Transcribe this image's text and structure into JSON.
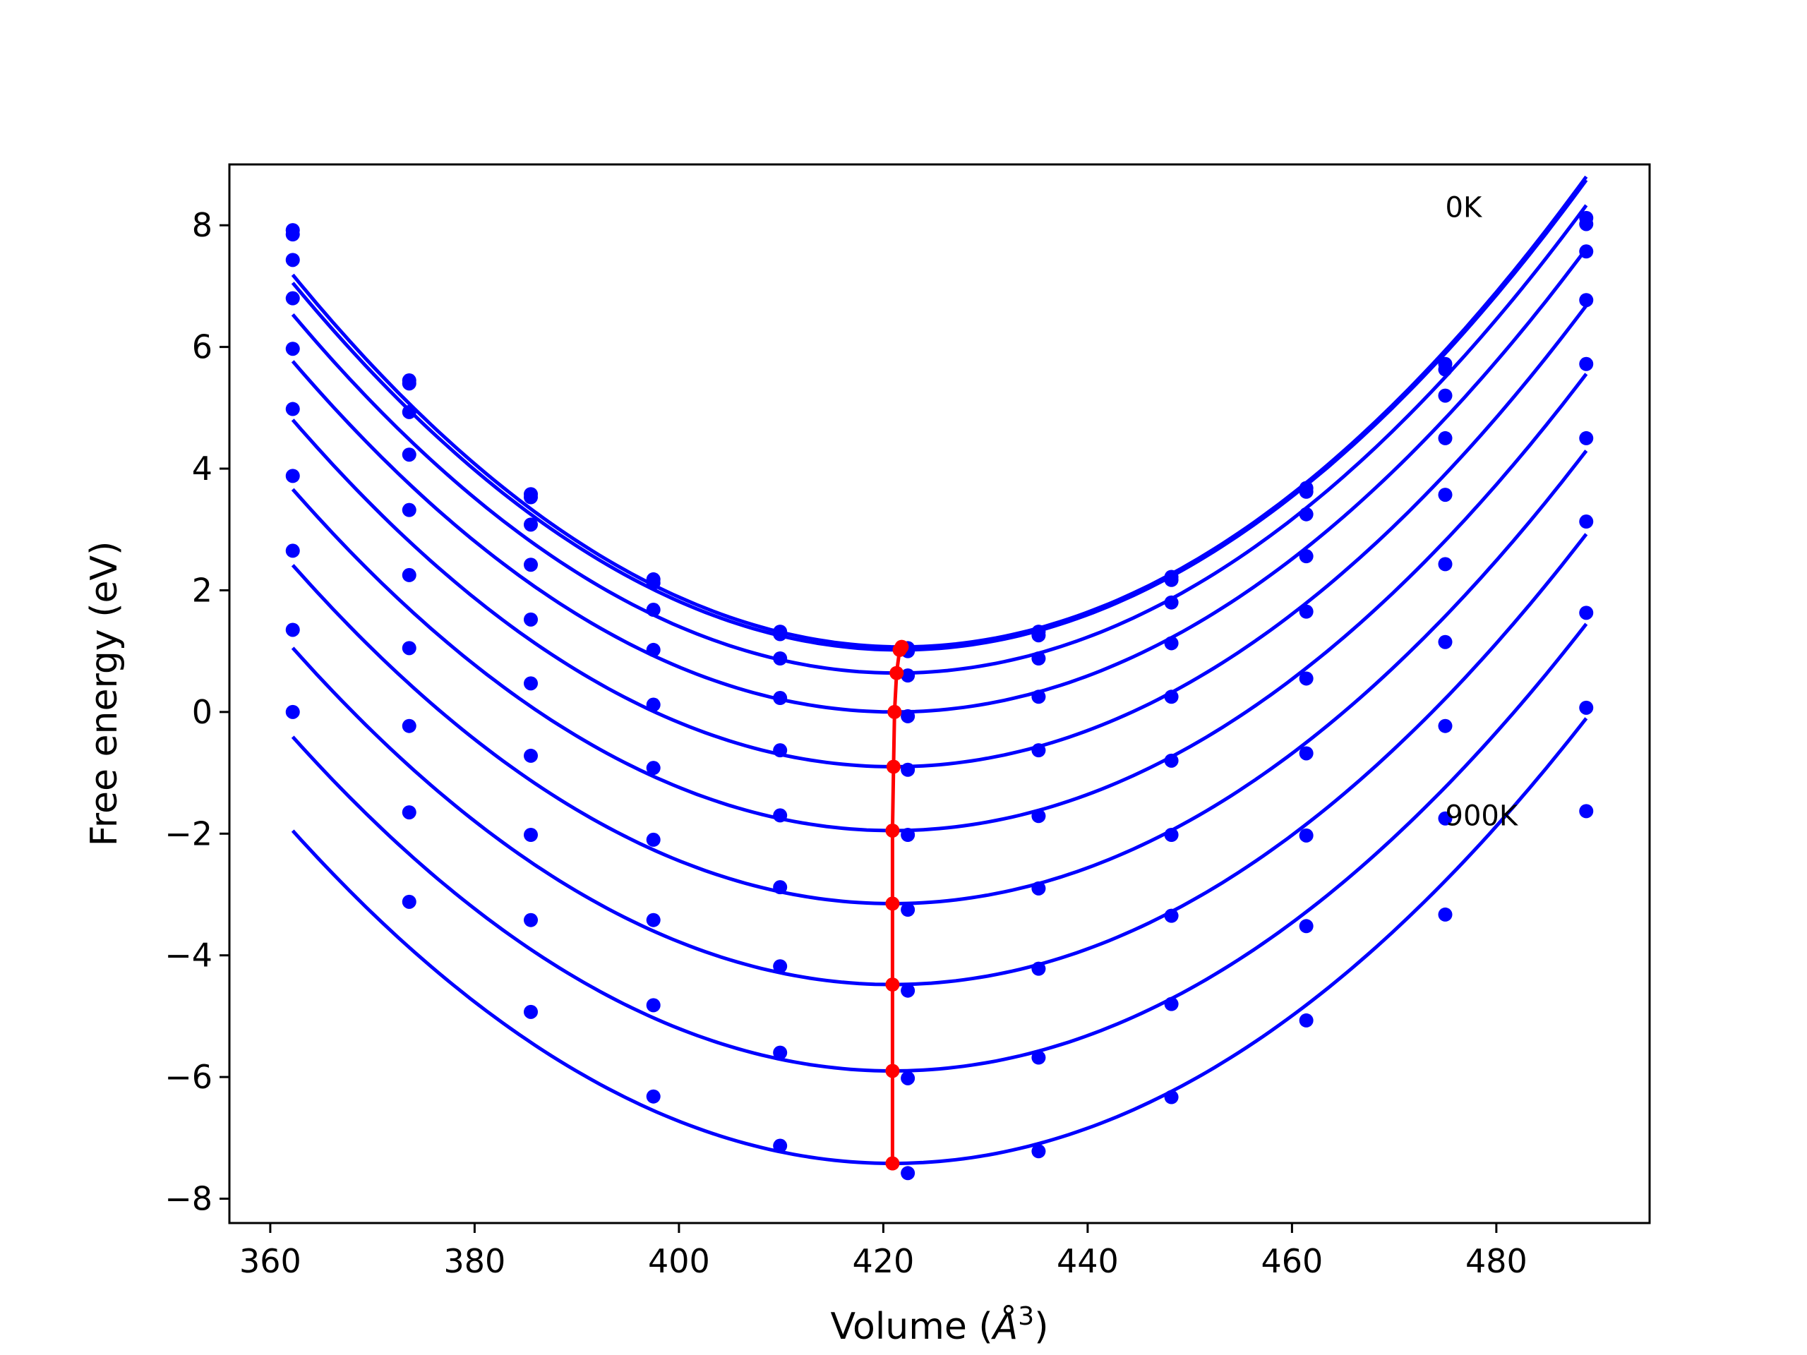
{
  "chart_data": {
    "type": "line",
    "xlabel_prefix": "Volume (",
    "xlabel_unit": "Å",
    "xlabel_exp": "3",
    "xlabel_suffix": ")",
    "ylabel": "Free energy (eV)",
    "xlim": [
      356,
      495
    ],
    "ylim": [
      -8.4,
      9.0
    ],
    "xticks": [
      360,
      380,
      400,
      420,
      440,
      460,
      480
    ],
    "yticks": [
      -8,
      -6,
      -4,
      -2,
      0,
      2,
      4,
      6,
      8
    ],
    "ytick_labels": [
      "−8",
      "−6",
      "−4",
      "−2",
      "0",
      "2",
      "4",
      "6",
      "8"
    ],
    "annotations": [
      {
        "text": "0K",
        "x": 475,
        "y": 8.3
      },
      {
        "text": "900K",
        "x": 475,
        "y": -1.7
      }
    ],
    "colors": {
      "series": "#0000ff",
      "minimum": "#ff0000"
    },
    "x": [
      362.2,
      373.6,
      385.5,
      397.5,
      409.9,
      422.4,
      435.2,
      448.2,
      461.4,
      475.0,
      488.8
    ],
    "series": [
      {
        "points": [
          7.92,
          5.45,
          3.58,
          2.18,
          1.32,
          1.0,
          1.32,
          2.22,
          3.68,
          5.72,
          8.12
        ],
        "min": [
          421.8,
          1.07
        ]
      },
      {
        "points": [
          7.85,
          5.4,
          3.53,
          2.12,
          1.28,
          1.05,
          1.26,
          2.17,
          3.62,
          5.63,
          8.02
        ],
        "min": [
          421.6,
          1.02
        ]
      },
      {
        "points": [
          7.43,
          4.93,
          3.08,
          1.68,
          0.88,
          0.6,
          0.88,
          1.8,
          3.25,
          5.2,
          7.57
        ],
        "min": [
          421.3,
          0.64
        ]
      },
      {
        "points": [
          6.8,
          4.23,
          2.42,
          1.02,
          0.23,
          -0.07,
          0.25,
          1.13,
          2.56,
          4.5,
          6.77
        ],
        "min": [
          421.1,
          0.0
        ]
      },
      {
        "points": [
          5.97,
          3.32,
          1.52,
          0.12,
          -0.63,
          -0.95,
          -0.63,
          0.25,
          1.65,
          3.57,
          5.72
        ],
        "min": [
          421.0,
          -0.9
        ]
      },
      {
        "points": [
          4.98,
          2.25,
          0.47,
          -0.92,
          -1.7,
          -2.02,
          -1.71,
          -0.8,
          0.55,
          2.43,
          4.5
        ],
        "min": [
          420.9,
          -1.95
        ]
      },
      {
        "points": [
          3.88,
          1.05,
          -0.72,
          -2.1,
          -2.88,
          -3.25,
          -2.9,
          -2.02,
          -0.68,
          1.15,
          3.13
        ],
        "min": [
          420.9,
          -3.15
        ]
      },
      {
        "points": [
          2.65,
          -0.23,
          -2.02,
          -3.42,
          -4.18,
          -4.58,
          -4.22,
          -3.35,
          -2.03,
          -0.23,
          1.63
        ],
        "min": [
          420.9,
          -4.48
        ]
      },
      {
        "points": [
          1.35,
          -1.65,
          -3.42,
          -4.82,
          -5.6,
          -6.02,
          -5.68,
          -4.8,
          -3.52,
          -1.75,
          0.07
        ],
        "min": [
          420.9,
          -5.9
        ]
      },
      {
        "points": [
          0.0,
          -3.12,
          -4.93,
          -6.32,
          -7.13,
          -7.58,
          -7.22,
          -6.33,
          -5.07,
          -3.33,
          -1.63
        ],
        "min": [
          420.9,
          -7.42
        ]
      }
    ]
  }
}
